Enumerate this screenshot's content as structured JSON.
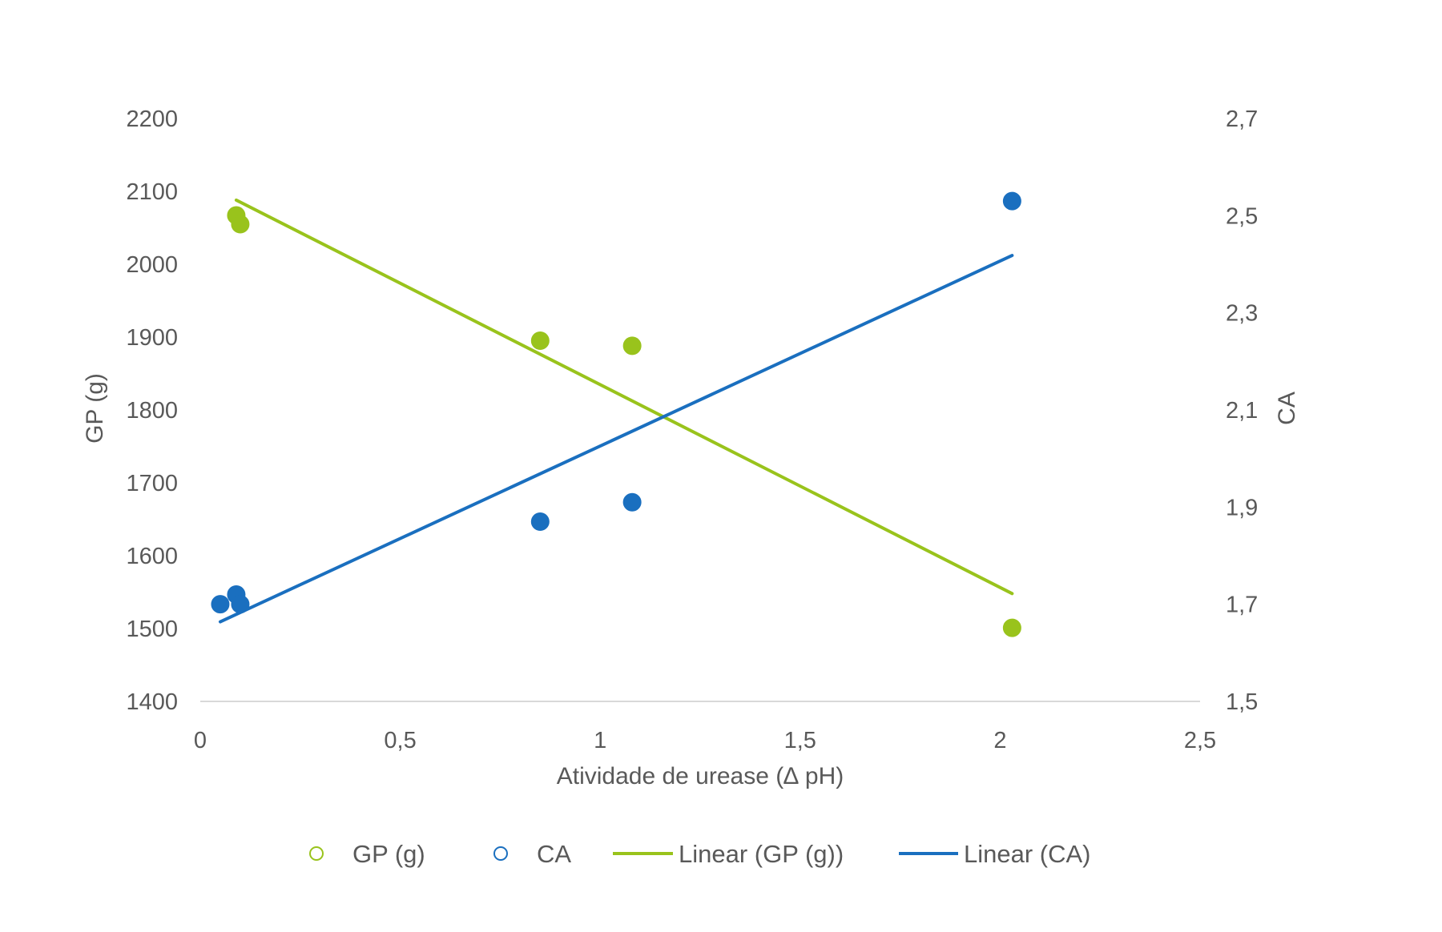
{
  "chart_data": {
    "type": "scatter",
    "title": "",
    "xlabel": "Atividade de urease (∆ pH)",
    "ylabel": "GP (g)",
    "y2label": "CA",
    "xlim": [
      0,
      2.5
    ],
    "ylim": [
      1400,
      2200
    ],
    "y2lim": [
      1.5,
      2.7
    ],
    "x_ticks": [
      "0",
      "0,5",
      "1",
      "1,5",
      "2",
      "2,5"
    ],
    "y_ticks": [
      "1400",
      "1500",
      "1600",
      "1700",
      "1800",
      "1900",
      "2000",
      "2100",
      "2200"
    ],
    "y2_ticks": [
      "1,5",
      "1,7",
      "1,9",
      "2,1",
      "2,3",
      "2,5",
      "2,7"
    ],
    "grid": false,
    "legend_position": "bottom",
    "series": [
      {
        "name": "GP (g)",
        "axis": "left",
        "color": "#99C31C",
        "points": [
          [
            0.09,
            2067
          ],
          [
            0.1,
            2055
          ],
          [
            0.85,
            1895
          ],
          [
            1.08,
            1888
          ],
          [
            2.03,
            1501
          ]
        ]
      },
      {
        "name": "CA",
        "axis": "right",
        "color": "#1A6FBF",
        "points": [
          [
            0.05,
            1.7
          ],
          [
            0.09,
            1.72
          ],
          [
            0.1,
            1.7
          ],
          [
            0.85,
            1.87
          ],
          [
            1.08,
            1.91
          ],
          [
            2.03,
            2.53
          ]
        ]
      }
    ],
    "trendlines": [
      {
        "name": "Linear (GP (g))",
        "axis": "left",
        "color": "#99C31C",
        "points": [
          [
            0.09,
            2088
          ],
          [
            2.03,
            1548
          ]
        ]
      },
      {
        "name": "Linear (CA)",
        "axis": "right",
        "color": "#1A6FBF",
        "points": [
          [
            0.05,
            1.664
          ],
          [
            2.03,
            2.418
          ]
        ]
      }
    ]
  }
}
